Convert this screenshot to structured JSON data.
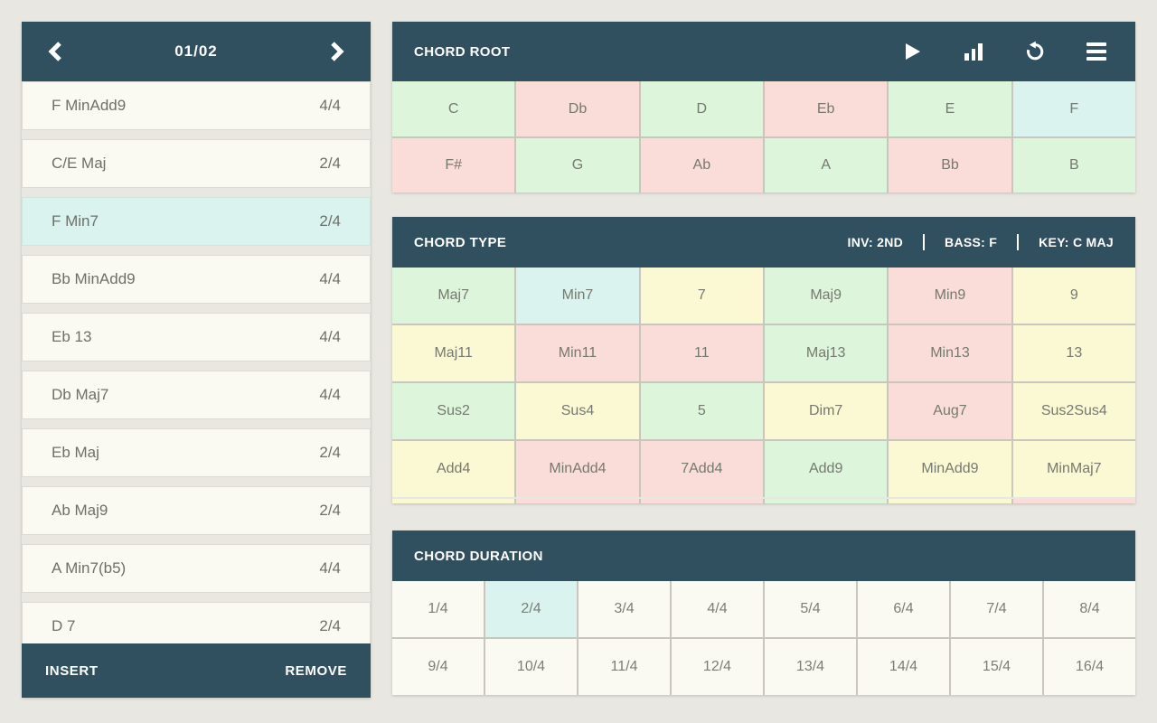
{
  "colors": {
    "teal": "#30505f",
    "background": "#e9e7e1",
    "green": "#ddf5da",
    "pink": "#fadcd9",
    "yellow": "#fbf9d3",
    "selected": "#daf3ee",
    "plain": "#fbfaf2"
  },
  "left_panel": {
    "header": {
      "page_indicator": "01/02"
    },
    "items": [
      {
        "name": "F MinAdd9",
        "duration": "4/4",
        "selected": false
      },
      {
        "name": "C/E Maj",
        "duration": "2/4",
        "selected": false
      },
      {
        "name": "F Min7",
        "duration": "2/4",
        "selected": true
      },
      {
        "name": "Bb MinAdd9",
        "duration": "4/4",
        "selected": false
      },
      {
        "name": "Eb 13",
        "duration": "4/4",
        "selected": false
      },
      {
        "name": "Db Maj7",
        "duration": "4/4",
        "selected": false
      },
      {
        "name": "Eb Maj",
        "duration": "2/4",
        "selected": false
      },
      {
        "name": "Ab Maj9",
        "duration": "2/4",
        "selected": false
      },
      {
        "name": "A Min7(b5)",
        "duration": "4/4",
        "selected": false
      },
      {
        "name": "D 7",
        "duration": "2/4",
        "selected": false
      }
    ],
    "footer": {
      "insert_label": "INSERT",
      "remove_label": "REMOVE"
    }
  },
  "chord_root": {
    "title": "CHORD ROOT",
    "icons": [
      "play-icon",
      "bar-chart-icon",
      "undo-icon",
      "menu-icon"
    ],
    "cells": [
      {
        "label": "C",
        "state": "green"
      },
      {
        "label": "Db",
        "state": "pink"
      },
      {
        "label": "D",
        "state": "green"
      },
      {
        "label": "Eb",
        "state": "pink"
      },
      {
        "label": "E",
        "state": "green"
      },
      {
        "label": "F",
        "state": "selected"
      },
      {
        "label": "F#",
        "state": "pink"
      },
      {
        "label": "G",
        "state": "green"
      },
      {
        "label": "Ab",
        "state": "pink"
      },
      {
        "label": "A",
        "state": "green"
      },
      {
        "label": "Bb",
        "state": "pink"
      },
      {
        "label": "B",
        "state": "green"
      }
    ]
  },
  "chord_type": {
    "title": "CHORD TYPE",
    "inversion": "INV: 2ND",
    "bass": "BASS: F",
    "key": "KEY: C MAJ",
    "cells": [
      {
        "label": "Maj7",
        "state": "green"
      },
      {
        "label": "Min7",
        "state": "selected"
      },
      {
        "label": "7",
        "state": "yellow"
      },
      {
        "label": "Maj9",
        "state": "green"
      },
      {
        "label": "Min9",
        "state": "pink"
      },
      {
        "label": "9",
        "state": "yellow"
      },
      {
        "label": "Maj11",
        "state": "yellow"
      },
      {
        "label": "Min11",
        "state": "pink"
      },
      {
        "label": "11",
        "state": "pink"
      },
      {
        "label": "Maj13",
        "state": "green"
      },
      {
        "label": "Min13",
        "state": "pink"
      },
      {
        "label": "13",
        "state": "yellow"
      },
      {
        "label": "Sus2",
        "state": "green"
      },
      {
        "label": "Sus4",
        "state": "yellow"
      },
      {
        "label": "5",
        "state": "green"
      },
      {
        "label": "Dim7",
        "state": "yellow"
      },
      {
        "label": "Aug7",
        "state": "pink"
      },
      {
        "label": "Sus2Sus4",
        "state": "yellow"
      },
      {
        "label": "Add4",
        "state": "yellow"
      },
      {
        "label": "MinAdd4",
        "state": "pink"
      },
      {
        "label": "7Add4",
        "state": "pink"
      },
      {
        "label": "Add9",
        "state": "green"
      },
      {
        "label": "MinAdd9",
        "state": "yellow"
      },
      {
        "label": "MinMaj7",
        "state": "yellow"
      }
    ],
    "partial_row_states": [
      "yellow",
      "pink",
      "pink",
      "green",
      "yellow",
      "pink"
    ]
  },
  "chord_duration": {
    "title": "CHORD DURATION",
    "cells": [
      {
        "label": "1/4",
        "state": "plain"
      },
      {
        "label": "2/4",
        "state": "selected"
      },
      {
        "label": "3/4",
        "state": "plain"
      },
      {
        "label": "4/4",
        "state": "plain"
      },
      {
        "label": "5/4",
        "state": "plain"
      },
      {
        "label": "6/4",
        "state": "plain"
      },
      {
        "label": "7/4",
        "state": "plain"
      },
      {
        "label": "8/4",
        "state": "plain"
      },
      {
        "label": "9/4",
        "state": "plain"
      },
      {
        "label": "10/4",
        "state": "plain"
      },
      {
        "label": "11/4",
        "state": "plain"
      },
      {
        "label": "12/4",
        "state": "plain"
      },
      {
        "label": "13/4",
        "state": "plain"
      },
      {
        "label": "14/4",
        "state": "plain"
      },
      {
        "label": "15/4",
        "state": "plain"
      },
      {
        "label": "16/4",
        "state": "plain"
      }
    ]
  }
}
